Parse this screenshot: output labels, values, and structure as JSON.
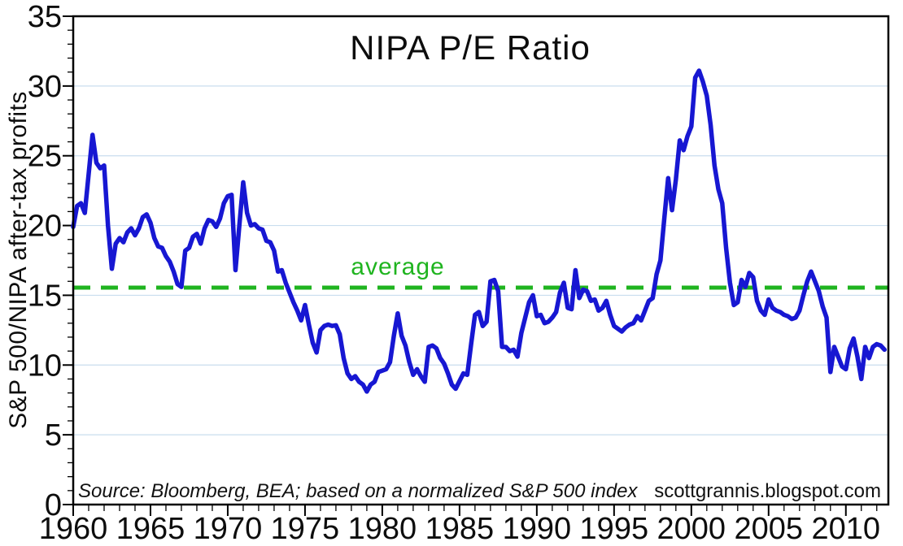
{
  "chart_data": {
    "type": "line",
    "title": "NIPA P/E Ratio",
    "ylabel": "S&P 500/NIPA after-tax profits",
    "xlabel": "",
    "source_note": "Source: Bloomberg, BEA; based on a normalized S&P 500 index",
    "credit": "scottgrannis.blogspot.com",
    "average_label": "average",
    "average_value": 15.55,
    "ylim": [
      0,
      35
    ],
    "xlim": [
      1960,
      2012.75
    ],
    "y_major_ticks": [
      0,
      5,
      10,
      15,
      20,
      25,
      30,
      35
    ],
    "y_minor_tick_step": 1,
    "x_tick_years": [
      1960,
      1965,
      1970,
      1975,
      1980,
      1985,
      1990,
      1995,
      2000,
      2005,
      2010
    ],
    "x_minor_tick_step": 1,
    "grid_values": [
      5,
      10,
      15,
      20,
      25,
      30
    ],
    "grid_on": true,
    "legend_position": "none",
    "x_start_year": 1960,
    "points_per_year": 4,
    "series": [
      {
        "name": "S&P 500 / NIPA after-tax profits (quarterly)",
        "values": [
          19.9,
          21.4,
          21.6,
          20.9,
          23.7,
          26.5,
          24.5,
          24.1,
          24.3,
          20.0,
          16.9,
          18.7,
          19.1,
          18.8,
          19.5,
          19.8,
          19.3,
          19.8,
          20.6,
          20.8,
          20.2,
          19.1,
          18.5,
          18.4,
          17.8,
          17.4,
          16.7,
          15.8,
          15.6,
          18.2,
          18.4,
          19.2,
          19.4,
          18.7,
          19.8,
          20.4,
          20.3,
          19.9,
          20.5,
          21.6,
          22.1,
          22.2,
          16.8,
          20.0,
          23.1,
          20.9,
          20.0,
          20.1,
          19.8,
          19.7,
          18.9,
          18.8,
          18.2,
          16.7,
          16.8,
          15.9,
          15.2,
          14.5,
          13.9,
          13.2,
          14.3,
          12.9,
          11.6,
          10.9,
          12.5,
          12.8,
          12.9,
          12.8,
          12.85,
          12.2,
          10.5,
          9.4,
          9.0,
          9.2,
          8.8,
          8.6,
          8.1,
          8.6,
          8.8,
          9.5,
          9.6,
          9.7,
          10.2,
          12.1,
          13.7,
          12.1,
          11.4,
          10.2,
          9.3,
          9.7,
          9.2,
          8.8,
          11.3,
          11.4,
          11.2,
          10.5,
          10.1,
          9.4,
          8.6,
          8.3,
          8.85,
          9.4,
          9.3,
          11.5,
          13.6,
          13.8,
          12.8,
          13.1,
          16.0,
          16.1,
          15.3,
          11.3,
          11.3,
          11.0,
          11.1,
          10.6,
          12.3,
          13.4,
          14.5,
          15.0,
          13.5,
          13.6,
          13.0,
          13.1,
          13.4,
          13.8,
          15.2,
          15.9,
          14.1,
          14.0,
          16.8,
          14.8,
          15.4,
          15.3,
          14.6,
          14.7,
          13.9,
          14.1,
          14.6,
          13.6,
          12.8,
          12.6,
          12.4,
          12.7,
          12.9,
          13.0,
          13.5,
          13.2,
          13.9,
          14.6,
          14.8,
          16.5,
          17.5,
          20.5,
          23.4,
          21.1,
          23.3,
          26.1,
          25.4,
          26.4,
          27.1,
          30.6,
          31.1,
          30.3,
          29.3,
          27.2,
          24.3,
          22.6,
          21.6,
          18.4,
          15.9,
          14.3,
          14.5,
          16.1,
          15.6,
          16.6,
          16.3,
          14.6,
          13.9,
          13.6,
          14.7,
          14.1,
          13.9,
          13.8,
          13.6,
          13.5,
          13.3,
          13.4,
          13.9,
          15.0,
          16.0,
          16.7,
          16.0,
          15.3,
          14.2,
          13.4,
          9.5,
          11.3,
          10.6,
          9.9,
          9.7,
          11.2,
          11.9,
          10.6,
          9.0,
          11.3,
          10.5,
          11.3,
          11.5,
          11.4,
          11.1
        ]
      }
    ],
    "colors": {
      "line": "#1717d2",
      "average": "#1fb41f",
      "grid": "#c9ddee",
      "axis": "#000000",
      "text": "#0d0d0d",
      "background": "#ffffff"
    }
  }
}
